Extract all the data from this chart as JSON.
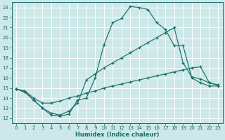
{
  "xlabel": "Humidex (Indice chaleur)",
  "xlim": [
    -0.5,
    23.5
  ],
  "ylim": [
    11.5,
    23.5
  ],
  "xticks": [
    0,
    1,
    2,
    3,
    4,
    5,
    6,
    7,
    8,
    9,
    10,
    11,
    12,
    13,
    14,
    15,
    16,
    17,
    18,
    19,
    20,
    21,
    22,
    23
  ],
  "yticks": [
    12,
    13,
    14,
    15,
    16,
    17,
    18,
    19,
    20,
    21,
    22,
    23
  ],
  "bg_color": "#cce8e8",
  "line_color": "#1a6e6a",
  "grid_color": "#ffffff",
  "line1_x": [
    0,
    1,
    2,
    3,
    4,
    5,
    6,
    7,
    8,
    9,
    10,
    11,
    12,
    13,
    14,
    15,
    16,
    17,
    18,
    19,
    20,
    21,
    22,
    23
  ],
  "line1_y": [
    14.9,
    14.6,
    13.8,
    13.0,
    12.3,
    12.2,
    12.4,
    13.8,
    14.0,
    16.0,
    19.3,
    21.5,
    21.9,
    23.1,
    23.0,
    22.8,
    21.5,
    20.8,
    19.2,
    19.2,
    16.0,
    15.5,
    15.2,
    15.2
  ],
  "line2_x": [
    0,
    1,
    2,
    3,
    4,
    5,
    6,
    7,
    8,
    9,
    10,
    11,
    12,
    13,
    14,
    15,
    16,
    17,
    18,
    19,
    20,
    21,
    22,
    23
  ],
  "line2_y": [
    14.9,
    14.6,
    13.8,
    13.0,
    12.5,
    12.3,
    12.7,
    13.5,
    15.8,
    16.4,
    17.0,
    17.5,
    18.0,
    18.5,
    19.0,
    19.5,
    20.0,
    20.5,
    21.0,
    17.5,
    16.1,
    15.9,
    15.5,
    15.3
  ],
  "line3_x": [
    0,
    1,
    2,
    3,
    4,
    5,
    6,
    7,
    8,
    9,
    10,
    11,
    12,
    13,
    14,
    15,
    16,
    17,
    18,
    19,
    20,
    21,
    22,
    23
  ],
  "line3_y": [
    14.9,
    14.7,
    14.0,
    13.5,
    13.5,
    13.7,
    14.0,
    14.2,
    14.5,
    14.7,
    15.0,
    15.2,
    15.4,
    15.6,
    15.8,
    16.0,
    16.2,
    16.4,
    16.6,
    16.8,
    17.0,
    17.1,
    15.5,
    15.3
  ]
}
